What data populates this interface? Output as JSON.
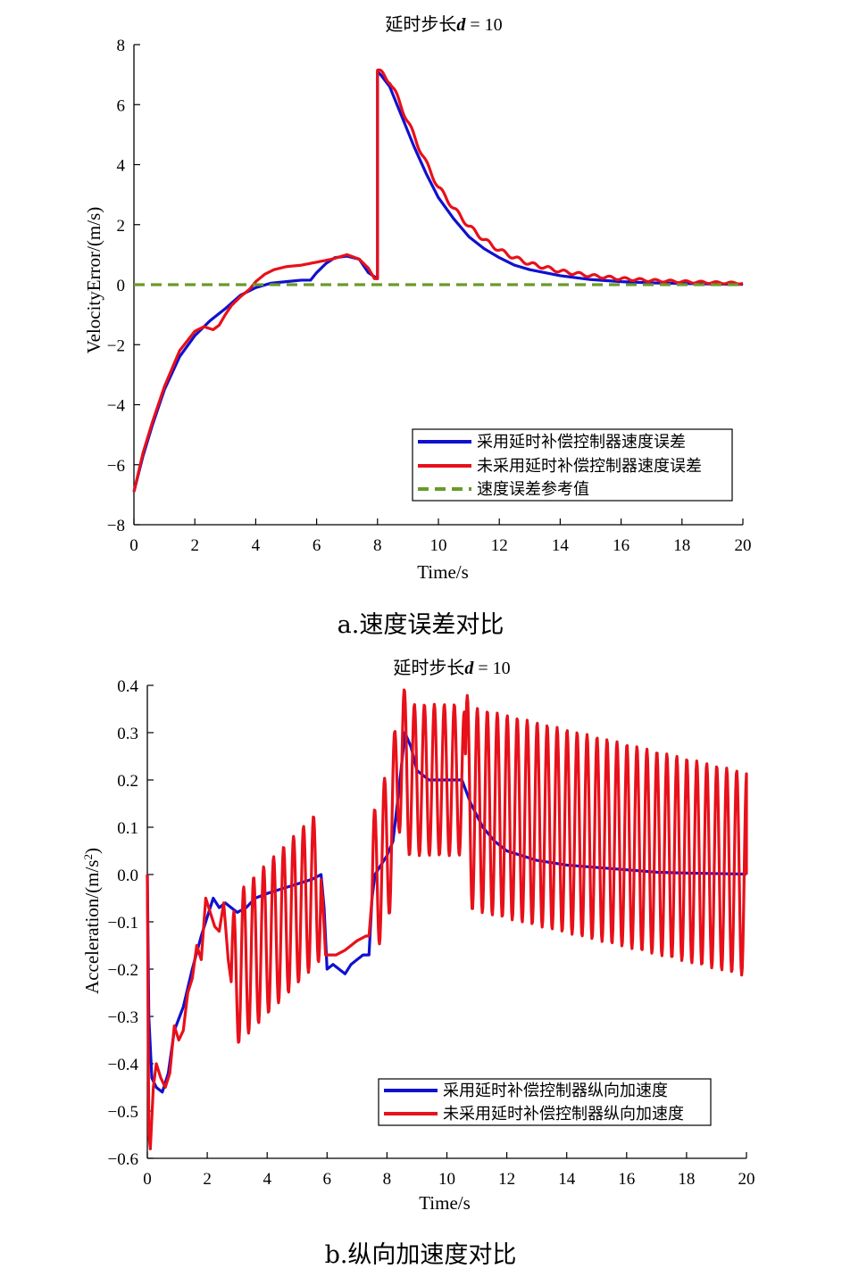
{
  "colors": {
    "series_blue": "#1010d0",
    "series_red": "#e8101a",
    "reference_green": "#6a9a2a"
  },
  "chart_data": [
    {
      "type": "line",
      "title": "延时步长d = 10",
      "title_prefix": "延时步长",
      "title_var": "d",
      "title_suffix": " = 10",
      "xlabel": "Time/s",
      "ylabel": "VelocityError/(m/s)",
      "xlim": [
        0,
        20
      ],
      "ylim": [
        -8,
        8
      ],
      "xticks": [
        0,
        2,
        4,
        6,
        8,
        10,
        12,
        14,
        16,
        18,
        20
      ],
      "yticks": [
        -8,
        -6,
        -4,
        -2,
        0,
        2,
        4,
        6,
        8
      ],
      "grid": false,
      "legend_position": "bottom-right",
      "caption": "a.速度误差对比",
      "series": [
        {
          "name": "采用延时补偿控制器速度误差",
          "color": "#1010d0",
          "style": "solid",
          "x": [
            0,
            0.3,
            0.6,
            1.0,
            1.5,
            2.0,
            2.5,
            3.0,
            3.5,
            4.0,
            4.5,
            5.0,
            5.5,
            5.8,
            6.0,
            6.3,
            6.6,
            7.0,
            7.4,
            7.7,
            8.0,
            8.0,
            8.1,
            8.4,
            8.8,
            9.2,
            9.6,
            10.0,
            10.5,
            11.0,
            11.5,
            12.0,
            12.5,
            13.0,
            14.0,
            15.0,
            16.0,
            17.0,
            18.0,
            19.0,
            20.0
          ],
          "y": [
            -6.9,
            -5.7,
            -4.7,
            -3.5,
            -2.4,
            -1.7,
            -1.2,
            -0.8,
            -0.35,
            -0.1,
            0.05,
            0.1,
            0.15,
            0.15,
            0.4,
            0.7,
            0.9,
            0.95,
            0.85,
            0.4,
            0.2,
            7.1,
            7.0,
            6.6,
            5.6,
            4.6,
            3.7,
            2.9,
            2.2,
            1.6,
            1.2,
            0.9,
            0.65,
            0.5,
            0.3,
            0.17,
            0.1,
            0.06,
            0.04,
            0.02,
            0.01
          ]
        },
        {
          "name": "未采用延时补偿控制器速度误差",
          "color": "#e8101a",
          "style": "solid",
          "x": [
            0,
            0.3,
            0.6,
            1.0,
            1.5,
            2.0,
            2.3,
            2.6,
            2.8,
            3.0,
            3.2,
            3.5,
            3.8,
            4.0,
            4.3,
            4.6,
            5.0,
            5.5,
            6.0,
            6.5,
            7.0,
            7.4,
            7.7,
            7.9,
            8.0,
            8.0,
            8.1,
            8.4,
            8.8,
            9.2,
            9.6,
            10.0,
            10.5,
            11.0,
            11.5,
            12.0,
            12.5,
            13.0,
            14.0,
            15.0,
            16.0,
            17.0,
            18.0,
            19.0,
            20.0
          ],
          "y": [
            -6.9,
            -5.6,
            -4.6,
            -3.4,
            -2.2,
            -1.55,
            -1.4,
            -1.5,
            -1.35,
            -1.0,
            -0.7,
            -0.4,
            -0.15,
            0.1,
            0.35,
            0.5,
            0.6,
            0.65,
            0.75,
            0.85,
            1.0,
            0.85,
            0.55,
            0.2,
            0.2,
            7.15,
            7.05,
            6.8,
            5.9,
            4.95,
            4.05,
            3.25,
            2.55,
            1.95,
            1.5,
            1.15,
            0.9,
            0.7,
            0.45,
            0.3,
            0.2,
            0.14,
            0.1,
            0.07,
            0.05
          ],
          "oscillation": {
            "start": 8.0,
            "period": 0.5,
            "amplitude": 0.1
          }
        },
        {
          "name": "速度误差参考值",
          "color": "#6a9a2a",
          "style": "dashed",
          "x": [
            0,
            20
          ],
          "y": [
            0,
            0
          ]
        }
      ]
    },
    {
      "type": "line",
      "title": "延时步长d = 10",
      "title_prefix": "延时步长",
      "title_var": "d",
      "title_suffix": " = 10",
      "xlabel": "Time/s",
      "ylabel": "Acceleration/(m/s²)",
      "ylabel_main": "Acceleration/(m/s",
      "ylabel_sup": "2",
      "ylabel_end": ")",
      "xlim": [
        0,
        20
      ],
      "ylim": [
        -0.6,
        0.4
      ],
      "xticks": [
        0,
        2,
        4,
        6,
        8,
        10,
        12,
        14,
        16,
        18,
        20
      ],
      "yticks": [
        "-0.6",
        "-0.5",
        "-0.4",
        "-0.3",
        "-0.2",
        "-0.1",
        "0.0",
        "0.1",
        "0.2",
        "0.3",
        "0.4"
      ],
      "grid": false,
      "legend_position": "bottom-right",
      "caption": "b.纵向加速度对比",
      "series": [
        {
          "name": "采用延时补偿控制器纵向加速度",
          "color": "#1010d0",
          "style": "solid",
          "x": [
            0,
            0.05,
            0.15,
            0.3,
            0.5,
            0.7,
            0.9,
            1.2,
            1.5,
            1.8,
            2.0,
            2.2,
            2.4,
            2.6,
            2.8,
            3.0,
            3.3,
            3.6,
            4.0,
            4.5,
            5.0,
            5.5,
            5.8,
            5.9,
            6.0,
            6.2,
            6.4,
            6.6,
            6.8,
            7.0,
            7.2,
            7.4,
            7.5,
            7.6,
            7.8,
            8.0,
            8.2,
            8.4,
            8.6,
            8.8,
            9.0,
            9.4,
            9.8,
            10.2,
            10.5,
            10.8,
            11.2,
            11.6,
            12.0,
            12.5,
            13.0,
            14.0,
            15.0,
            16.0,
            17.0,
            18.0,
            19.0,
            20.0
          ],
          "y": [
            0.0,
            -0.3,
            -0.43,
            -0.45,
            -0.46,
            -0.42,
            -0.33,
            -0.28,
            -0.2,
            -0.13,
            -0.09,
            -0.05,
            -0.07,
            -0.06,
            -0.07,
            -0.08,
            -0.07,
            -0.05,
            -0.04,
            -0.03,
            -0.02,
            -0.01,
            0.0,
            -0.07,
            -0.2,
            -0.19,
            -0.2,
            -0.21,
            -0.19,
            -0.18,
            -0.17,
            -0.17,
            -0.05,
            0.0,
            0.02,
            0.04,
            0.07,
            0.18,
            0.3,
            0.27,
            0.22,
            0.2,
            0.2,
            0.2,
            0.2,
            0.15,
            0.1,
            0.07,
            0.05,
            0.04,
            0.03,
            0.02,
            0.015,
            0.01,
            0.005,
            0.003,
            0.002,
            0.001
          ]
        },
        {
          "name": "未采用延时补偿控制器纵向加速度",
          "color": "#e8101a",
          "style": "solid",
          "x": [
            0,
            0.05,
            0.1,
            0.2,
            0.3,
            0.45,
            0.6,
            0.75,
            0.9,
            1.05,
            1.2,
            1.35,
            1.5,
            1.65,
            1.8,
            1.95,
            2.1,
            2.25,
            2.4,
            2.55,
            2.7,
            2.85,
            3.0,
            5.8,
            5.85,
            5.95,
            6.1,
            6.3,
            6.6,
            7.0,
            7.3,
            7.4,
            7.5,
            7.65,
            7.8,
            7.95,
            8.1,
            8.25,
            8.4,
            8.55,
            8.7,
            10.5,
            10.8,
            20.0
          ],
          "y": [
            0.0,
            -0.55,
            -0.58,
            -0.45,
            -0.4,
            -0.43,
            -0.45,
            -0.42,
            -0.32,
            -0.35,
            -0.33,
            -0.25,
            -0.22,
            -0.15,
            -0.18,
            -0.05,
            -0.08,
            -0.11,
            -0.12,
            -0.06,
            -0.18,
            -0.25,
            -0.2,
            -0.02,
            -0.05,
            -0.17,
            -0.17,
            -0.17,
            -0.16,
            -0.14,
            -0.13,
            -0.13,
            -0.05,
            0.0,
            0.02,
            0.05,
            0.08,
            0.14,
            0.25,
            0.24,
            0.2,
            0.2,
            0.14,
            0.0
          ],
          "oscillation": {
            "segments": [
              [
                2.8,
                5.8,
                0.32,
                0.08
              ],
              [
                7.5,
                10.6,
                0.32,
                0.08
              ],
              [
                10.6,
                20.0,
                0.43,
                0.1
              ]
            ]
          }
        }
      ]
    }
  ]
}
